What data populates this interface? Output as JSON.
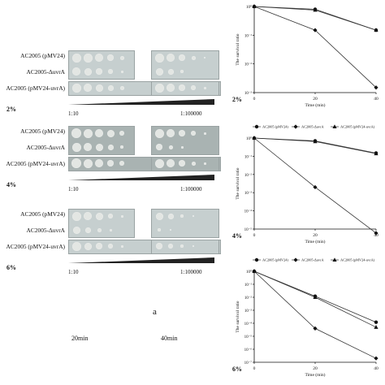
{
  "left_panel": {
    "blocks": [
      {
        "concentration": "2%",
        "strains": [
          "AC2005 (pMV24)",
          "AC2005-ΔuvrA",
          "AC2005 (pMV24-uvrA)"
        ],
        "dilution_low": "1:10",
        "dilution_high": "1:100000"
      },
      {
        "concentration": "4%",
        "strains": [
          "AC2005 (pMV24)",
          "AC2005-ΔuvrA",
          "AC2005 (pMV24-uvrA)"
        ],
        "dilution_low": "1:10",
        "dilution_high": "1:100000"
      },
      {
        "concentration": "6%",
        "strains": [
          "AC2005 (pMV24)",
          "AC2005-ΔuvrA",
          "AC2005 (pMV24-uvrA)"
        ],
        "dilution_low": "1:10",
        "dilution_high": "1:100000"
      }
    ],
    "column_labels": [
      "20min",
      "40min"
    ],
    "panel_letter": "a",
    "plate_color": "#c6cfcf",
    "spot_color": "#e3e6e3"
  },
  "chart_data": [
    {
      "type": "line",
      "panel_label": "2%",
      "x": [
        0,
        20,
        40
      ],
      "xlabel": "Time (min)",
      "ylabel": "The survival ratio",
      "xlim": [
        0,
        40
      ],
      "ylog": true,
      "ylim_exp": [
        -3,
        0
      ],
      "yticks": [
        "10⁰",
        "10⁻¹",
        "10⁻²",
        "10⁻³"
      ],
      "xticks": [
        "0",
        "20",
        "40"
      ],
      "legend": [],
      "series": [
        {
          "values": [
            1,
            0.8,
            0.15
          ],
          "marker": "circle"
        },
        {
          "values": [
            1,
            0.15,
            0.0015
          ],
          "marker": "diamond"
        },
        {
          "values": [
            1,
            0.75,
            0.15
          ],
          "marker": "triangle"
        }
      ]
    },
    {
      "type": "line",
      "panel_label": "4%",
      "x": [
        0,
        20,
        40
      ],
      "xlabel": "Time (min)",
      "ylabel": "The survival ratio",
      "xlim": [
        0,
        40
      ],
      "ylog": true,
      "ylim_exp": [
        -5,
        0
      ],
      "yticks": [
        "10⁰",
        "10⁻¹",
        "10⁻²",
        "10⁻³",
        "10⁻⁴",
        "10⁻⁵"
      ],
      "xticks": [
        "0",
        "20",
        "40"
      ],
      "legend": [
        "AC2005 (pMV24)",
        "AC2005-ΔuvrA",
        "AC2005 (pMV24-uvrA)"
      ],
      "series": [
        {
          "name": "AC2005 (pMV24)",
          "values": [
            1,
            0.7,
            0.15
          ],
          "marker": "circle"
        },
        {
          "name": "AC2005-ΔuvrA",
          "values": [
            1,
            0.002,
            6e-06
          ],
          "marker": "diamond"
        },
        {
          "name": "AC2005 (pMV24-uvrA)",
          "values": [
            1,
            0.65,
            0.14
          ],
          "marker": "triangle"
        }
      ]
    },
    {
      "type": "line",
      "panel_label": "6%",
      "x": [
        0,
        20,
        40
      ],
      "xlabel": "Time (min)",
      "ylabel": "The survival ratio",
      "xlim": [
        0,
        40
      ],
      "ylog": true,
      "ylim_exp": [
        -7,
        0
      ],
      "yticks": [
        "10⁰",
        "10⁻¹",
        "10⁻²",
        "10⁻³",
        "10⁻⁴",
        "10⁻⁵",
        "10⁻⁶",
        "10⁻⁷"
      ],
      "xticks": [
        "0",
        "20",
        "40"
      ],
      "legend": [
        "AC2005 (pMV24)",
        "AC2005-ΔuvrA",
        "AC2005 (pMV24-uvrA)"
      ],
      "series": [
        {
          "name": "AC2005 (pMV24)",
          "values": [
            1,
            0.012,
            0.00012
          ],
          "marker": "circle"
        },
        {
          "name": "AC2005-ΔuvrA",
          "values": [
            1,
            4e-05,
            2e-07
          ],
          "marker": "diamond"
        },
        {
          "name": "AC2005 (pMV24-uvrA)",
          "values": [
            1,
            0.01,
            5e-05
          ],
          "marker": "triangle"
        }
      ]
    }
  ]
}
